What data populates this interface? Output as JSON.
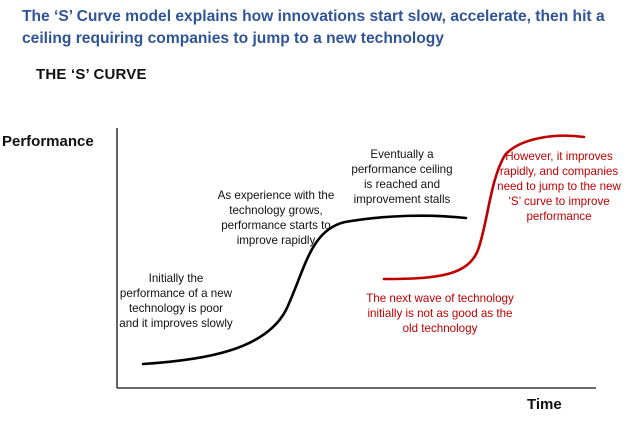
{
  "headline": "The ‘S’ Curve model explains how innovations start slow, accelerate, then hit a ceiling requiring companies to jump to a new technology",
  "section_title": "THE ‘S’ CURVE",
  "axes": {
    "y_label": "Performance",
    "x_label": "Time"
  },
  "annotations": {
    "initial": "Initially the performance of a new technology is poor and it improves slowly",
    "growth": "As experience with the technology grows, performance starts to improve rapidly",
    "ceiling": "Eventually a performance ceiling is reached and improvement stalls",
    "next_wave": "The next wave of technology initially is not as good as the old technology",
    "jump": "However, it improves rapidly, and companies need to jump to the new ‘S’ curve to improve performance"
  },
  "colors": {
    "headline": "#2f5597",
    "old_curve": "#000000",
    "new_curve": "#c00000"
  }
}
